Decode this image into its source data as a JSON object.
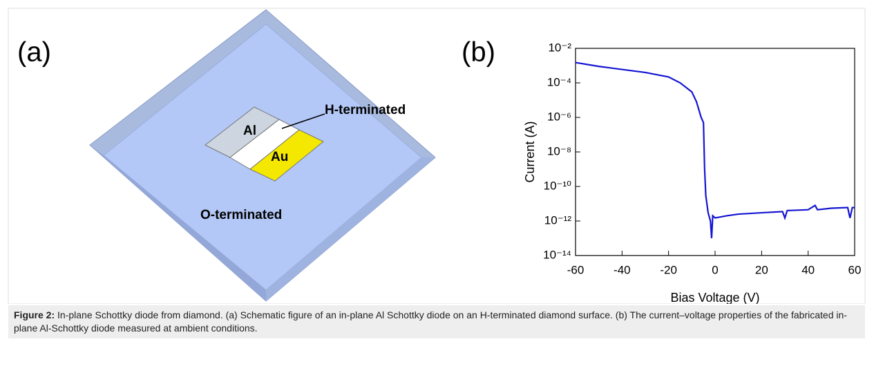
{
  "panel_a": {
    "label": "(a)",
    "al": "Al",
    "au": "Au",
    "h_terminated": "H-terminated",
    "o_terminated": "O-terminated"
  },
  "chart_data": {
    "type": "line",
    "panel_label": "(b)",
    "xlabel": "Bias Voltage (V)",
    "ylabel": "Current (A)",
    "x": [
      -60,
      -50,
      -40,
      -30,
      -20,
      -15,
      -10,
      -8,
      -6,
      -5,
      -4.5,
      -4,
      -3,
      -2,
      -1.5,
      -1,
      0,
      5,
      10,
      20,
      29,
      30,
      31,
      40,
      43,
      44,
      50,
      57,
      58,
      59,
      60
    ],
    "values": [
      0.0015,
      0.0009,
      0.0006,
      0.0004,
      0.00022,
      0.0001,
      3e-05,
      8e-06,
      1e-06,
      5e-07,
      1e-09,
      3e-11,
      3e-12,
      1e-12,
      1e-13,
      2e-12,
      1.5e-12,
      2e-12,
      2.5e-12,
      3e-12,
      3.5e-12,
      1.5e-12,
      4e-12,
      4.5e-12,
      8e-12,
      4.5e-12,
      5.5e-12,
      6e-12,
      1.5e-12,
      6e-12,
      6e-12
    ],
    "color": "#1414d2",
    "log_y": true,
    "xlim": [
      -60,
      60
    ],
    "xticks": [
      -60,
      -40,
      -20,
      0,
      20,
      40,
      60
    ],
    "ylim": [
      1e-14,
      0.01
    ],
    "yticks": [
      {
        "value": 1e-14,
        "label": "10⁻¹⁴"
      },
      {
        "value": 1e-12,
        "label": "10⁻¹²"
      },
      {
        "value": 1e-10,
        "label": "10⁻¹⁰"
      },
      {
        "value": 1e-08,
        "label": "10⁻⁸"
      },
      {
        "value": 1e-06,
        "label": "10⁻⁶"
      },
      {
        "value": 0.0001,
        "label": "10⁻⁴"
      },
      {
        "value": 0.01,
        "label": "10⁻²"
      }
    ]
  },
  "caption": {
    "label": "Figure 2:",
    "text": " In-plane Schottky diode from diamond. (a) Schematic figure of an in-plane Al Schottky diode on an H-terminated diamond surface. (b) The current–voltage properties of the fabricated in-plane Al-Schottky diode measured at ambient conditions."
  }
}
